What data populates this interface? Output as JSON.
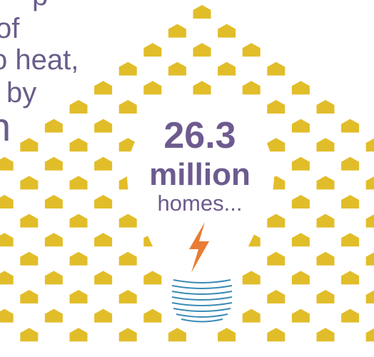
{
  "text_fragments": [
    "p",
    "of",
    "o heat,",
    "by",
    "n"
  ],
  "headline": {
    "number": "26.3",
    "unit": "million",
    "noun": "homes..."
  },
  "colors": {
    "house_blocks": "#e2bd2a",
    "text_purple": "#6d5b8f",
    "bolt": "#e87c34",
    "bulb_base": "#3a8bb5"
  },
  "icons": [
    "house-block-icon",
    "lightbulb-icon",
    "lightning-bolt-icon"
  ]
}
